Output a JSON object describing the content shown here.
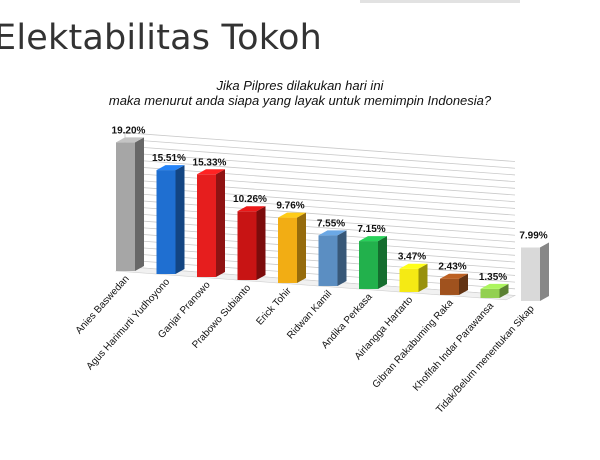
{
  "slide": {
    "title": "Elektabilitas Tokoh"
  },
  "question": {
    "line1": "Jika Pilpres dilakukan hari ini",
    "line2": "maka menurut anda siapa yang layak untuk memimpin Indonesia?"
  },
  "chart_data": {
    "type": "bar",
    "title": "Jika Pilpres dilakukan hari ini maka menurut anda siapa yang layak untuk memimpin Indonesia?",
    "xlabel": "",
    "ylabel": "",
    "ylim": [
      0,
      20
    ],
    "grid": true,
    "legend": "none",
    "categories": [
      "Anies Baswedan",
      "Agus Harimurti Yudhoyono",
      "Ganjar Pranowo",
      "Prabowo Subianto",
      "Erick Tohir",
      "Ridwan Kamil",
      "Andika Perkasa",
      "Airlangga Hartarto",
      "Gibran Rakabuming Raka",
      "Khofifah Indar Parawansa",
      "Tidak/Belum menentukan Sikap"
    ],
    "values": [
      19.2,
      15.51,
      15.33,
      10.26,
      9.76,
      7.55,
      7.15,
      3.47,
      2.43,
      1.35,
      7.99
    ],
    "value_labels": [
      "19.20%",
      "15.51%",
      "15.33%",
      "10.26%",
      "9.76%",
      "7.55%",
      "7.15%",
      "3.47%",
      "2.43%",
      "1.35%",
      "7.99%"
    ],
    "colors": [
      "#a6a6a6",
      "#1f6fd1",
      "#e61e1e",
      "#c81414",
      "#f2ad14",
      "#5b8ec2",
      "#22b14c",
      "#f5ea14",
      "#a0521e",
      "#92d050",
      "#d9d9d9"
    ]
  }
}
